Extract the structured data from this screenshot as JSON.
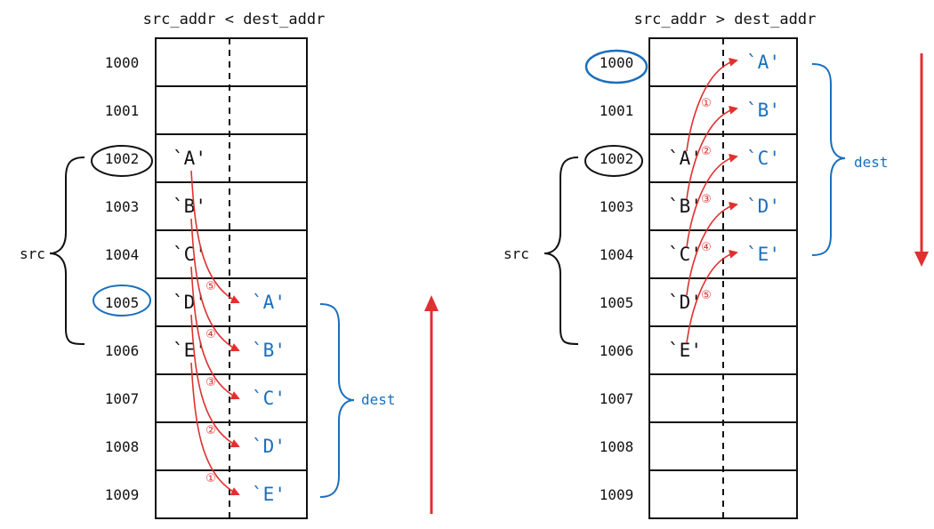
{
  "colors": {
    "ink": "#111111",
    "blue": "#1a6fbd",
    "red": "#e03030"
  },
  "panels": [
    {
      "id": "left",
      "title": "src_addr < dest_addr",
      "addresses": [
        "1000",
        "1001",
        "1002",
        "1003",
        "1004",
        "1005",
        "1006",
        "1007",
        "1008",
        "1009"
      ],
      "src_chars": [
        "`A'",
        "`B'",
        "`C'",
        "`D'",
        "`E'"
      ],
      "src_start_row": 2,
      "dest_chars": [
        "`A'",
        "`B'",
        "`C'",
        "`D'",
        "`E'"
      ],
      "dest_start_row": 5,
      "src_label": "src",
      "dest_label": "dest",
      "circled_black": "1002",
      "circled_blue": "1005",
      "step_labels": [
        "⑤",
        "④",
        "③",
        "②",
        "①"
      ],
      "direction": "up"
    },
    {
      "id": "right",
      "title": "src_addr > dest_addr",
      "addresses": [
        "1000",
        "1001",
        "1002",
        "1003",
        "1004",
        "1005",
        "1006",
        "1007",
        "1008",
        "1009"
      ],
      "src_chars": [
        "`A'",
        "`B'",
        "`C'",
        "`D'",
        "`E'"
      ],
      "src_start_row": 2,
      "dest_chars": [
        "`A'",
        "`B'",
        "`C'",
        "`D'",
        "`E'"
      ],
      "dest_start_row": 0,
      "src_label": "src",
      "dest_label": "dest",
      "circled_black": "1002",
      "circled_blue": "1000",
      "step_labels": [
        "①",
        "②",
        "③",
        "④",
        "⑤"
      ],
      "direction": "down"
    }
  ]
}
